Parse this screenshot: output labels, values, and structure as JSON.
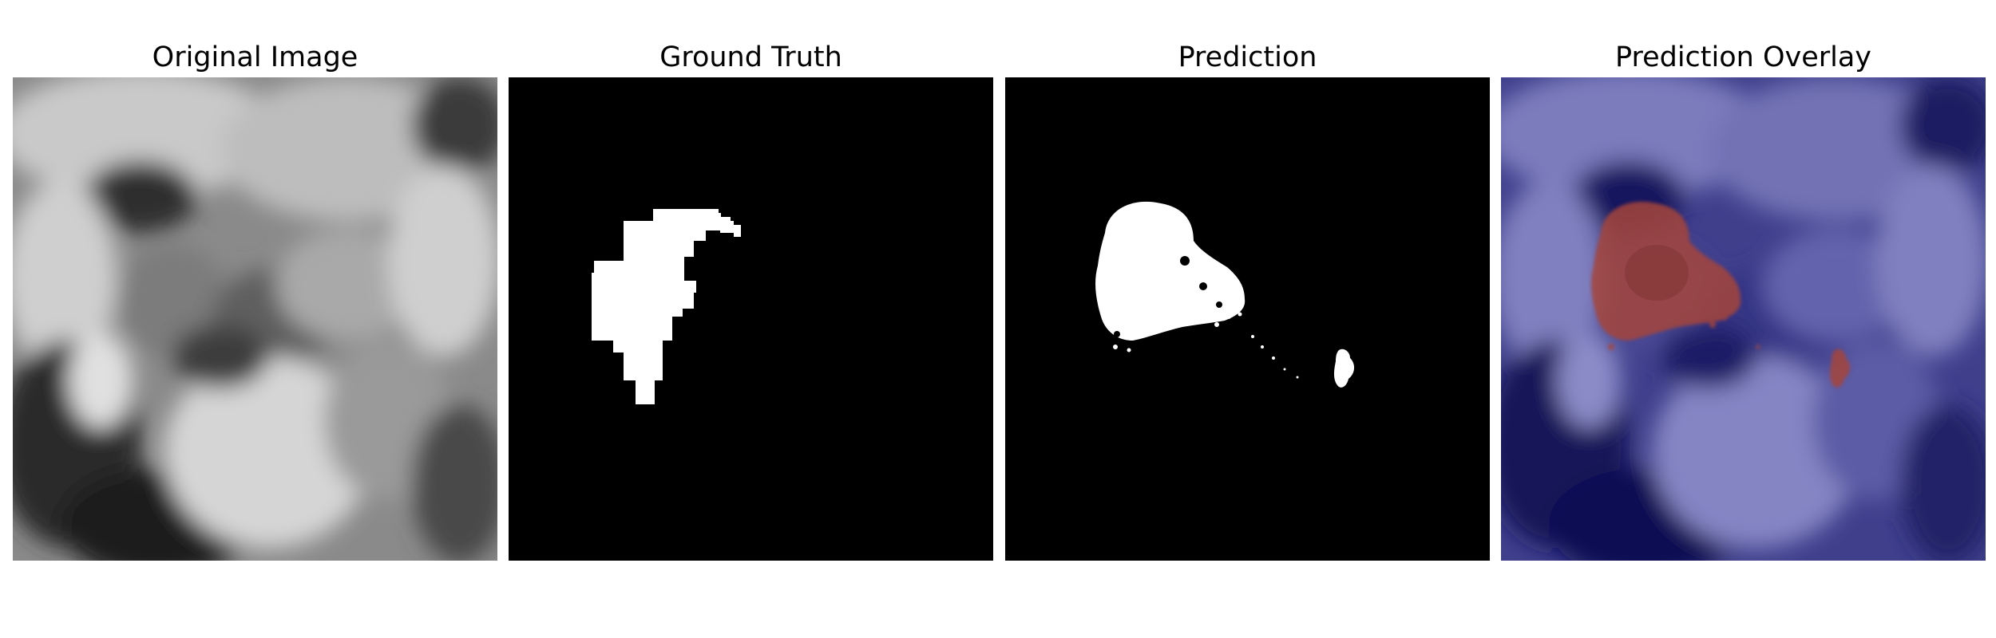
{
  "panels": [
    {
      "title": "Original Image"
    },
    {
      "title": "Ground Truth"
    },
    {
      "title": "Prediction"
    },
    {
      "title": "Prediction Overlay"
    }
  ],
  "colors": {
    "background": "#ffffff",
    "mask_background": "#000000",
    "mask_foreground": "#ffffff",
    "overlay_background": "#1a1a6e",
    "overlay_prediction": "#a5453a"
  }
}
